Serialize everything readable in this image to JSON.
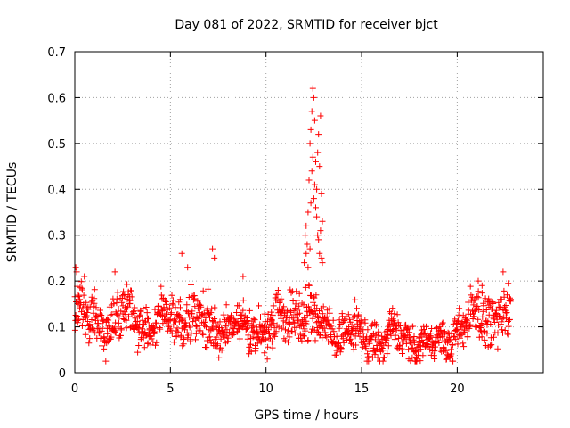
{
  "chart_data": {
    "type": "scatter",
    "title": "Day 081 of 2022, SRMTID for receiver bjct",
    "xlabel": "GPS time / hours",
    "ylabel": "SRMTID / TECUs",
    "xlim": [
      0,
      24.5
    ],
    "ylim": [
      0,
      0.7
    ],
    "xticks": [
      0,
      5,
      10,
      15,
      20
    ],
    "yticks": [
      0,
      0.1,
      0.2,
      0.3,
      0.4,
      0.5,
      0.6,
      0.7
    ],
    "xtick_labels": [
      "0",
      "5",
      "10",
      "15",
      "20"
    ],
    "ytick_labels": [
      "0",
      "0.1",
      "0.2",
      "0.3",
      "0.4",
      "0.5",
      "0.6",
      "0.7"
    ],
    "grid": true,
    "marker": "plus",
    "series": [
      {
        "name": "SRMTID",
        "color": "#ff0000",
        "profile": [
          {
            "x": 0.0,
            "mean": 0.13,
            "spread": 0.05
          },
          {
            "x": 1.0,
            "mean": 0.12,
            "spread": 0.05
          },
          {
            "x": 2.0,
            "mean": 0.11,
            "spread": 0.05
          },
          {
            "x": 3.0,
            "mean": 0.13,
            "spread": 0.04
          },
          {
            "x": 4.0,
            "mean": 0.1,
            "spread": 0.04
          },
          {
            "x": 5.0,
            "mean": 0.13,
            "spread": 0.05
          },
          {
            "x": 6.0,
            "mean": 0.12,
            "spread": 0.05
          },
          {
            "x": 7.0,
            "mean": 0.1,
            "spread": 0.05
          },
          {
            "x": 8.0,
            "mean": 0.1,
            "spread": 0.04
          },
          {
            "x": 9.0,
            "mean": 0.09,
            "spread": 0.04
          },
          {
            "x": 10.0,
            "mean": 0.1,
            "spread": 0.04
          },
          {
            "x": 11.0,
            "mean": 0.12,
            "spread": 0.05
          },
          {
            "x": 12.0,
            "mean": 0.13,
            "spread": 0.06
          },
          {
            "x": 13.0,
            "mean": 0.1,
            "spread": 0.04
          },
          {
            "x": 14.0,
            "mean": 0.09,
            "spread": 0.04
          },
          {
            "x": 15.0,
            "mean": 0.08,
            "spread": 0.04
          },
          {
            "x": 16.0,
            "mean": 0.07,
            "spread": 0.04
          },
          {
            "x": 17.0,
            "mean": 0.08,
            "spread": 0.04
          },
          {
            "x": 18.0,
            "mean": 0.07,
            "spread": 0.03
          },
          {
            "x": 19.0,
            "mean": 0.06,
            "spread": 0.03
          },
          {
            "x": 20.0,
            "mean": 0.09,
            "spread": 0.04
          },
          {
            "x": 21.0,
            "mean": 0.13,
            "spread": 0.05
          },
          {
            "x": 22.0,
            "mean": 0.12,
            "spread": 0.05
          },
          {
            "x": 22.8,
            "mean": 0.12,
            "spread": 0.05
          }
        ],
        "x_start": 0.0,
        "x_end": 22.8,
        "n_points": 1300,
        "spike_points": [
          {
            "x": 12.0,
            "y": 0.24
          },
          {
            "x": 12.05,
            "y": 0.3
          },
          {
            "x": 12.1,
            "y": 0.32
          },
          {
            "x": 12.15,
            "y": 0.28
          },
          {
            "x": 12.2,
            "y": 0.35
          },
          {
            "x": 12.25,
            "y": 0.42
          },
          {
            "x": 12.3,
            "y": 0.5
          },
          {
            "x": 12.35,
            "y": 0.53
          },
          {
            "x": 12.4,
            "y": 0.57
          },
          {
            "x": 12.45,
            "y": 0.62
          },
          {
            "x": 12.5,
            "y": 0.6
          },
          {
            "x": 12.55,
            "y": 0.55
          },
          {
            "x": 12.6,
            "y": 0.46
          },
          {
            "x": 12.65,
            "y": 0.4
          },
          {
            "x": 12.7,
            "y": 0.48
          },
          {
            "x": 12.75,
            "y": 0.52
          },
          {
            "x": 12.8,
            "y": 0.45
          },
          {
            "x": 12.85,
            "y": 0.56
          },
          {
            "x": 12.9,
            "y": 0.39
          },
          {
            "x": 12.95,
            "y": 0.33
          },
          {
            "x": 12.4,
            "y": 0.44
          },
          {
            "x": 12.5,
            "y": 0.38
          },
          {
            "x": 12.6,
            "y": 0.36
          },
          {
            "x": 12.7,
            "y": 0.3
          },
          {
            "x": 12.3,
            "y": 0.27
          },
          {
            "x": 12.2,
            "y": 0.23
          },
          {
            "x": 12.8,
            "y": 0.26
          },
          {
            "x": 12.9,
            "y": 0.25
          },
          {
            "x": 12.45,
            "y": 0.47
          },
          {
            "x": 12.35,
            "y": 0.37
          },
          {
            "x": 12.55,
            "y": 0.41
          },
          {
            "x": 12.65,
            "y": 0.34
          },
          {
            "x": 12.75,
            "y": 0.29
          },
          {
            "x": 12.85,
            "y": 0.31
          },
          {
            "x": 12.95,
            "y": 0.24
          },
          {
            "x": 12.1,
            "y": 0.26
          }
        ],
        "outliers": [
          {
            "x": 0.05,
            "y": 0.23
          },
          {
            "x": 0.1,
            "y": 0.22
          },
          {
            "x": 0.5,
            "y": 0.21
          },
          {
            "x": 2.1,
            "y": 0.22
          },
          {
            "x": 5.6,
            "y": 0.26
          },
          {
            "x": 5.9,
            "y": 0.23
          },
          {
            "x": 7.2,
            "y": 0.27
          },
          {
            "x": 7.3,
            "y": 0.25
          },
          {
            "x": 8.8,
            "y": 0.21
          },
          {
            "x": 22.4,
            "y": 0.22
          },
          {
            "x": 21.1,
            "y": 0.2
          },
          {
            "x": 21.3,
            "y": 0.19
          }
        ]
      }
    ]
  }
}
